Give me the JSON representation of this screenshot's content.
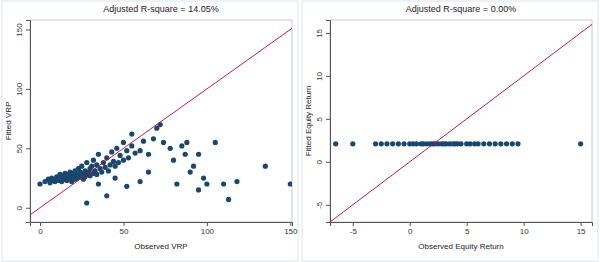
{
  "chart_data": [
    {
      "type": "scatter",
      "title": "Adjusted R-square = 14.05%",
      "x_label": "Observed VRP",
      "y_label": "Fitted VRP",
      "xlim": [
        -6,
        151
      ],
      "ylim": [
        -12,
        158
      ],
      "xticks": [
        0,
        50,
        100,
        150
      ],
      "yticks": [
        0,
        50,
        100,
        150
      ],
      "series": [
        {
          "type": "scatter",
          "color": "#1a476f",
          "marker": "circle",
          "x": [
            0,
            3,
            5,
            6,
            7,
            8,
            9,
            10,
            10,
            11,
            12,
            12,
            13,
            14,
            14,
            15,
            15,
            16,
            16,
            17,
            17,
            18,
            18,
            19,
            19,
            20,
            20,
            21,
            21,
            22,
            22,
            23,
            23,
            24,
            24,
            25,
            25,
            26,
            26,
            27,
            27,
            28,
            28,
            29,
            30,
            30,
            31,
            32,
            32,
            33,
            34,
            34,
            35,
            36,
            37,
            38,
            39,
            40,
            41,
            42,
            43,
            44,
            45,
            46,
            47,
            48,
            50,
            50,
            52,
            53,
            55,
            57,
            60,
            62,
            65,
            68,
            70,
            72,
            74,
            78,
            80,
            82,
            85,
            87,
            88,
            90,
            92,
            95,
            95,
            98,
            100,
            105,
            110,
            113,
            118,
            135,
            150,
            28,
            40,
            52,
            60,
            65,
            35,
            45,
            55
          ],
          "values": [
            20,
            22,
            24,
            21,
            25,
            23,
            22,
            26,
            24,
            23,
            25,
            28,
            22,
            24,
            27,
            25,
            29,
            23,
            26,
            28,
            24,
            25,
            30,
            27,
            22,
            26,
            29,
            24,
            31,
            27,
            25,
            28,
            33,
            26,
            30,
            27,
            35,
            29,
            24,
            31,
            26,
            28,
            38,
            30,
            27,
            33,
            35,
            29,
            40,
            31,
            28,
            36,
            45,
            33,
            30,
            38,
            34,
            42,
            31,
            36,
            47,
            39,
            35,
            50,
            38,
            44,
            55,
            40,
            48,
            42,
            52,
            46,
            48,
            56,
            45,
            58,
            67,
            70,
            55,
            50,
            40,
            20,
            52,
            45,
            55,
            30,
            35,
            15,
            45,
            25,
            20,
            55,
            20,
            7,
            22,
            35,
            20,
            4,
            10,
            18,
            22,
            30,
            20,
            25,
            62
          ]
        },
        {
          "type": "line",
          "color": "#c10534",
          "line_style": "solid",
          "x": [
            -6,
            151
          ],
          "values": [
            -6,
            151
          ]
        }
      ]
    },
    {
      "type": "scatter",
      "title": "Adjusted R-square = 0.00%",
      "x_label": "Observed Equity Return",
      "y_label": "Fitted Equity Return",
      "xlim": [
        -7,
        16
      ],
      "ylim": [
        -7,
        16.5
      ],
      "xticks": [
        -5,
        0,
        5,
        10,
        15
      ],
      "yticks": [
        -5,
        0,
        5,
        10,
        15
      ],
      "series": [
        {
          "type": "scatter",
          "color": "#1a476f",
          "marker": "circle",
          "x": [
            -6.5,
            -5,
            -3,
            -2.5,
            -2,
            -1.5,
            -1,
            -0.5,
            0,
            0.3,
            0.6,
            1,
            1.2,
            1.5,
            1.8,
            2,
            2.2,
            2.5,
            2.8,
            3,
            3.2,
            3.5,
            3.8,
            4,
            4.2,
            4.5,
            5,
            5.3,
            5.7,
            6,
            6.5,
            7,
            7.5,
            8,
            8.5,
            9,
            9.5,
            15
          ],
          "values": [
            2.1,
            2.1,
            2.1,
            2.1,
            2.1,
            2.1,
            2.1,
            2.1,
            2.1,
            2.1,
            2.1,
            2.1,
            2.1,
            2.1,
            2.1,
            2.1,
            2.1,
            2.1,
            2.1,
            2.1,
            2.1,
            2.1,
            2.1,
            2.1,
            2.1,
            2.1,
            2.1,
            2.1,
            2.1,
            2.1,
            2.1,
            2.1,
            2.1,
            2.1,
            2.1,
            2.1,
            2.1,
            2.1
          ]
        },
        {
          "type": "line",
          "color": "#c10534",
          "line_style": "solid",
          "x": [
            -7,
            16
          ],
          "values": [
            -7,
            16
          ]
        }
      ]
    }
  ]
}
